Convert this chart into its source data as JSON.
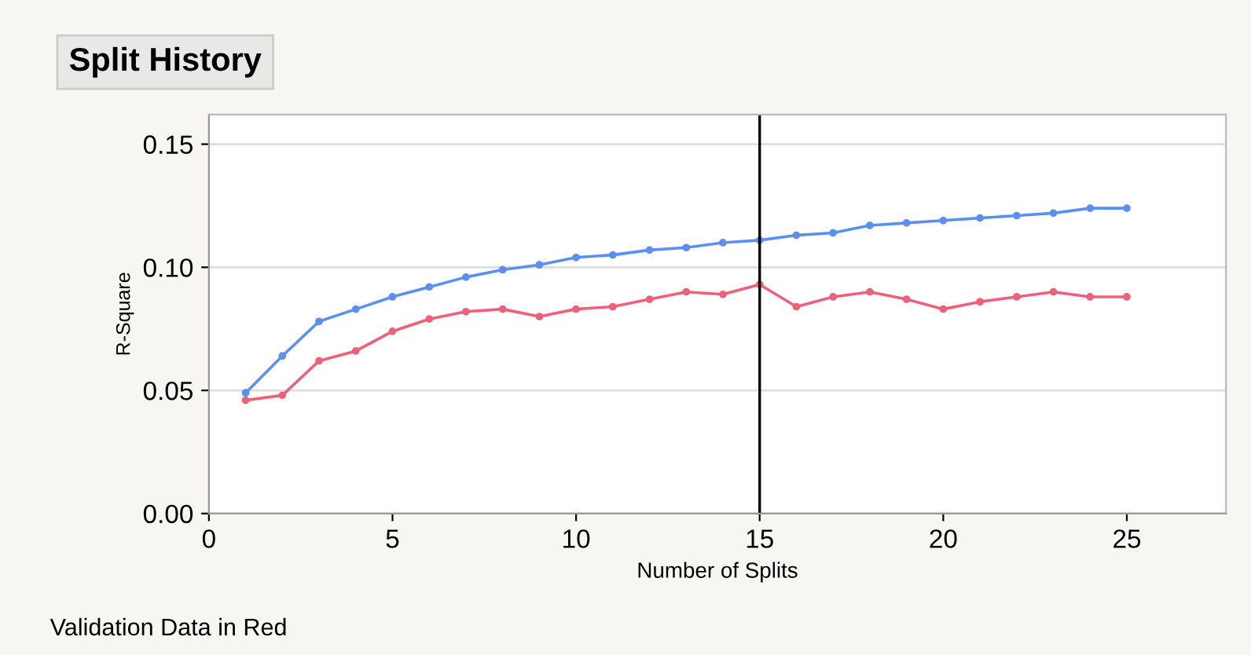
{
  "chart_data": {
    "type": "line",
    "title": "Split History",
    "xlabel": "Number of Splits",
    "ylabel": "R-Square",
    "x": [
      1,
      2,
      3,
      4,
      5,
      6,
      7,
      8,
      9,
      10,
      11,
      12,
      13,
      14,
      15,
      16,
      17,
      18,
      19,
      20,
      21,
      22,
      23,
      24,
      25
    ],
    "series": [
      {
        "color": "#5b8ff0",
        "values": [
          0.049,
          0.064,
          0.078,
          0.083,
          0.088,
          0.092,
          0.096,
          0.099,
          0.101,
          0.104,
          0.105,
          0.107,
          0.108,
          0.11,
          0.111,
          0.113,
          0.114,
          0.117,
          0.118,
          0.119,
          0.12,
          0.121,
          0.122,
          0.124,
          0.124
        ]
      },
      {
        "color": "#f0607a",
        "values": [
          0.046,
          0.048,
          0.062,
          0.066,
          0.074,
          0.079,
          0.082,
          0.083,
          0.08,
          0.083,
          0.084,
          0.087,
          0.09,
          0.089,
          0.093,
          0.084,
          0.088,
          0.09,
          0.087,
          0.083,
          0.086,
          0.088,
          0.09,
          0.088,
          0.088
        ]
      }
    ],
    "xlim": [
      0,
      27.7
    ],
    "xticks": [
      0,
      5,
      10,
      15,
      20,
      25
    ],
    "ylim": [
      0,
      0.162
    ],
    "yticks": [
      {
        "value": 0,
        "label": "0.00"
      },
      {
        "value": 0.05,
        "label": "0.05"
      },
      {
        "value": 0.1,
        "label": "0.10"
      },
      {
        "value": 0.15,
        "label": "0.15"
      }
    ],
    "grid": "y",
    "marker": "circle",
    "line_style": "solid",
    "ref_lines": [
      {
        "axis": "x",
        "value": 15,
        "color": "#000000"
      }
    ],
    "annotations": [
      "Validation Data in Red"
    ]
  }
}
